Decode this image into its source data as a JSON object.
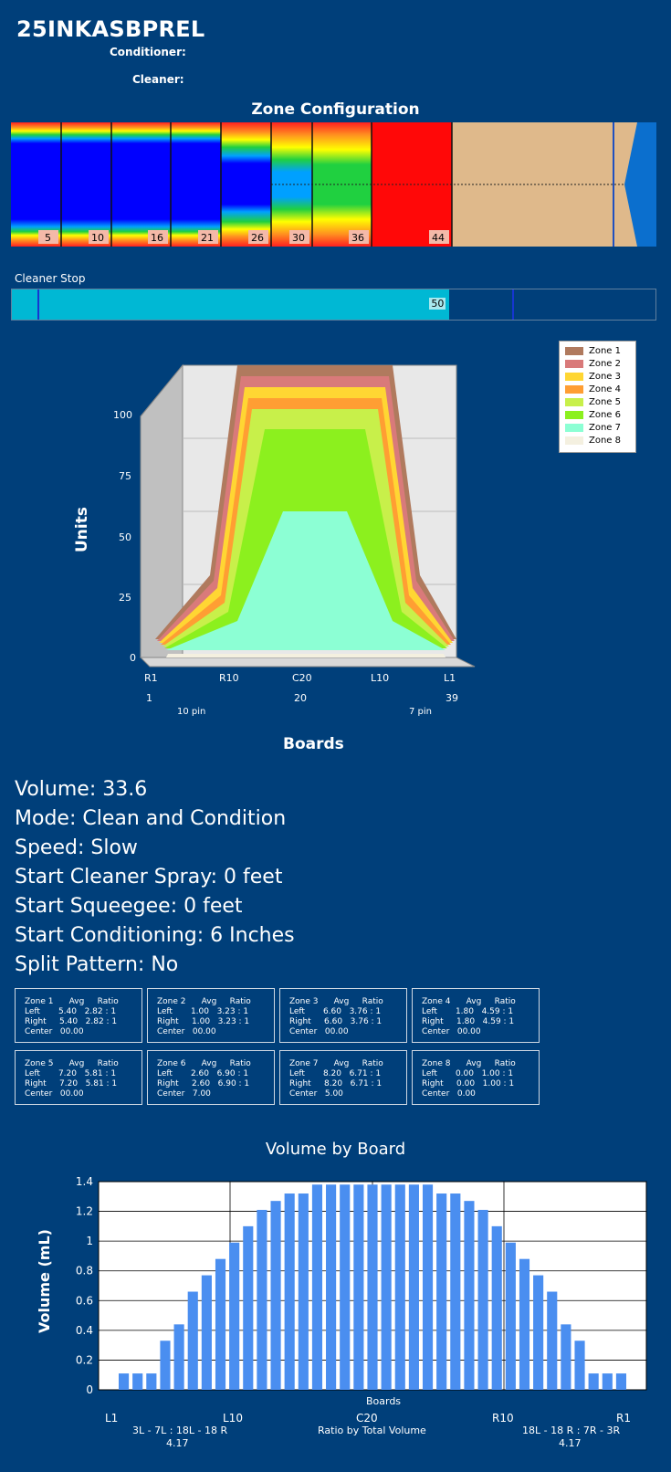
{
  "header": {
    "title": "25INKASBPREL",
    "conditioner_label": "Conditioner:",
    "cleaner_label": "Cleaner:"
  },
  "zone_config": {
    "title": "Zone Configuration",
    "boundaries": [
      "5",
      "10",
      "16",
      "21",
      "26",
      "30",
      "36",
      "44"
    ]
  },
  "cleaner_stop": {
    "label": "Cleaner Stop",
    "value": "50",
    "fill_percent": 68
  },
  "chart3d": {
    "ylabel": "Units",
    "xlabel": "Boards",
    "yticks": [
      "0",
      "25",
      "50",
      "75",
      "100"
    ],
    "xticks": [
      "R1",
      "R10",
      "C20",
      "L10",
      "L1"
    ],
    "xnums": [
      "1",
      "20",
      "39"
    ],
    "pin_left": "10 pin",
    "pin_right": "7 pin",
    "legend": [
      {
        "name": "Zone 1",
        "color": "#b07a5e"
      },
      {
        "name": "Zone 2",
        "color": "#d97a7a"
      },
      {
        "name": "Zone 3",
        "color": "#ffd633"
      },
      {
        "name": "Zone 4",
        "color": "#ff9e33"
      },
      {
        "name": "Zone 5",
        "color": "#c8f04a"
      },
      {
        "name": "Zone 6",
        "color": "#8cf01e"
      },
      {
        "name": "Zone 7",
        "color": "#8cffd4"
      },
      {
        "name": "Zone 8",
        "color": "#f4f0e0"
      }
    ]
  },
  "info": {
    "volume": "Volume: 33.6",
    "mode": "Mode: Clean and Condition",
    "speed": "Speed: Slow",
    "start_cleaner": "Start Cleaner Spray: 0 feet",
    "start_squeegee": "Start Squeegee: 0 feet",
    "start_conditioning": "Start Conditioning: 6 Inches",
    "split": "Split Pattern: No"
  },
  "zones": [
    {
      "h": "Zone 1      Avg     Ratio",
      "l": "Left       5.40   2.82 : 1",
      "r": "Right     5.40   2.82 : 1",
      "c": "Center   00.00"
    },
    {
      "h": "Zone 2      Avg     Ratio",
      "l": "Left       1.00   3.23 : 1",
      "r": "Right     1.00   3.23 : 1",
      "c": "Center   00.00"
    },
    {
      "h": "Zone 3      Avg     Ratio",
      "l": "Left       6.60   3.76 : 1",
      "r": "Right     6.60   3.76 : 1",
      "c": "Center   00.00"
    },
    {
      "h": "Zone 4      Avg     Ratio",
      "l": "Left       1.80   4.59 : 1",
      "r": "Right     1.80   4.59 : 1",
      "c": "Center   00.00"
    },
    {
      "h": "Zone 5      Avg     Ratio",
      "l": "Left       7.20   5.81 : 1",
      "r": "Right     7.20   5.81 : 1",
      "c": "Center   00.00"
    },
    {
      "h": "Zone 6      Avg     Ratio",
      "l": "Left       2.60   6.90 : 1",
      "r": "Right     2.60   6.90 : 1",
      "c": "Center   7.00"
    },
    {
      "h": "Zone 7      Avg     Ratio",
      "l": "Left       8.20   6.71 : 1",
      "r": "Right     8.20   6.71 : 1",
      "c": "Center   5.00"
    },
    {
      "h": "Zone 8      Avg     Ratio",
      "l": "Left       0.00   1.00 : 1",
      "r": "Right     0.00   1.00 : 1",
      "c": "Center   0.00"
    }
  ],
  "volume_by_board": {
    "title": "Volume by Board",
    "ylabel": "Volume (mL)",
    "xlabel": "Boards",
    "xticks": [
      "L1",
      "L10",
      "C20",
      "R10",
      "R1"
    ],
    "ratio_left": "3L - 7L : 18L - 18 R",
    "ratio_left_value": "4.17",
    "ratio_mid": "Ratio by Total Volume",
    "ratio_right": "18L - 18 R : 7R - 3R",
    "ratio_right_value": "4.17"
  },
  "chart_data": {
    "type": "bar",
    "title": "Volume by Board",
    "xlabel": "Boards",
    "ylabel": "Volume (mL)",
    "ylim": [
      0,
      1.4
    ],
    "yticks": [
      0,
      0.2,
      0.4,
      0.6,
      0.8,
      1,
      1.2,
      1.4
    ],
    "values": [
      0.11,
      0.11,
      0.11,
      0.33,
      0.44,
      0.66,
      0.77,
      0.88,
      0.99,
      1.1,
      1.21,
      1.27,
      1.32,
      1.32,
      1.38,
      1.38,
      1.38,
      1.38,
      1.38,
      1.38,
      1.38,
      1.38,
      1.38,
      1.32,
      1.32,
      1.27,
      1.21,
      1.1,
      0.99,
      0.88,
      0.77,
      0.66,
      0.44,
      0.33,
      0.11,
      0.11,
      0.11
    ],
    "grid": true
  }
}
